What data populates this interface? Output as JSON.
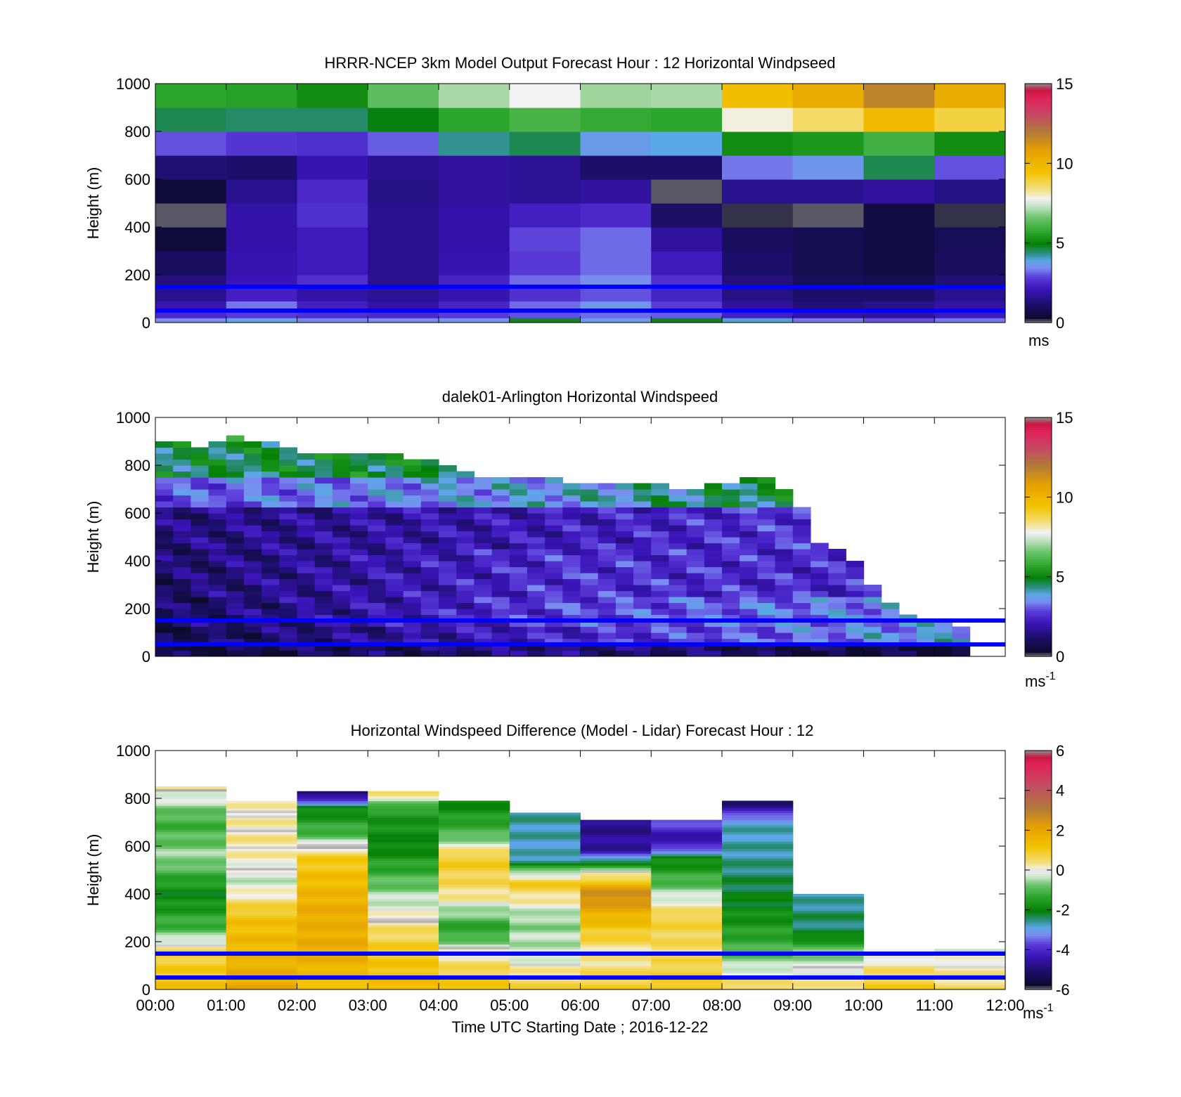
{
  "figure": {
    "xlabel": "Time UTC  Starting Date ; 2016-12-22",
    "x_tick_labels": [
      "00:00",
      "01:00",
      "02:00",
      "03:00",
      "04:00",
      "05:00",
      "06:00",
      "07:00",
      "08:00",
      "09:00",
      "10:00",
      "11:00",
      "12:00"
    ],
    "reference_line_color": "#0000ff",
    "reference_line_heights_m": [
      50,
      150
    ]
  },
  "chart_data": [
    {
      "id": "model",
      "type": "heatmap",
      "title": "HRRR-NCEP 3km Model Output   Forecast Hour : 12 Horizontal Windpseed",
      "ylabel": "Height (m)",
      "ylim": [
        0,
        1000
      ],
      "y_ticks": [
        "0",
        "200",
        "400",
        "600",
        "800",
        "1000"
      ],
      "colorbar": {
        "range": [
          0,
          15
        ],
        "ticks": [
          "0",
          "5",
          "10",
          "15"
        ],
        "unit_base": "ms",
        "unit_sup": ""
      },
      "x_hours": [
        0,
        1,
        2,
        3,
        4,
        5,
        6,
        7,
        8,
        9,
        10,
        11,
        12
      ],
      "y_bins_m": [
        [
          0,
          20
        ],
        [
          20,
          50
        ],
        [
          50,
          90
        ],
        [
          90,
          150
        ],
        [
          150,
          200
        ],
        [
          200,
          300
        ],
        [
          300,
          400
        ],
        [
          400,
          500
        ],
        [
          500,
          600
        ],
        [
          600,
          700
        ],
        [
          700,
          800
        ],
        [
          800,
          900
        ],
        [
          900,
          1000
        ]
      ],
      "values": [
        [
          3.5,
          3.8,
          3.4,
          3.5,
          3.6,
          4.8,
          3.7,
          4.8,
          4.0,
          3.3,
          3.0,
          3.3
        ],
        [
          2.5,
          2.8,
          2.6,
          2.5,
          2.8,
          3.0,
          3.2,
          3.1,
          2.3,
          1.9,
          1.8,
          2.2
        ],
        [
          2.0,
          3.3,
          2.3,
          1.9,
          2.4,
          3.2,
          3.6,
          2.8,
          1.8,
          1.4,
          1.6,
          1.9
        ],
        [
          1.6,
          2.3,
          1.9,
          1.7,
          2.0,
          2.6,
          3.0,
          2.4,
          1.5,
          1.2,
          1.2,
          1.6
        ],
        [
          1.4,
          2.1,
          2.6,
          1.6,
          2.4,
          3.2,
          3.5,
          2.6,
          1.4,
          0.9,
          0.8,
          1.3
        ],
        [
          1.0,
          2.0,
          2.2,
          1.6,
          2.0,
          2.8,
          3.2,
          2.2,
          1.2,
          0.8,
          0.6,
          1.0
        ],
        [
          0.5,
          1.9,
          2.2,
          1.6,
          1.9,
          2.9,
          3.2,
          1.8,
          1.0,
          0.8,
          0.6,
          0.9
        ],
        [
          0.1,
          1.9,
          2.6,
          1.6,
          1.9,
          2.3,
          2.5,
          1.1,
          0.2,
          0.1,
          0.6,
          0.2
        ],
        [
          0.5,
          1.6,
          2.5,
          1.5,
          1.8,
          1.7,
          1.8,
          0.1,
          1.6,
          1.6,
          1.8,
          1.5
        ],
        [
          1.3,
          1.2,
          2.0,
          1.6,
          1.8,
          1.7,
          1.2,
          1.2,
          3.3,
          3.6,
          4.6,
          3.0
        ],
        [
          3.0,
          2.7,
          2.6,
          3.1,
          4.3,
          4.6,
          3.7,
          3.9,
          5.2,
          5.4,
          6.0,
          5.2
        ],
        [
          4.6,
          4.5,
          4.5,
          4.9,
          5.7,
          6.1,
          5.8,
          5.7,
          7.9,
          8.6,
          9.8,
          8.9
        ],
        [
          5.7,
          5.6,
          5.2,
          6.4,
          7.1,
          7.8,
          7.0,
          7.1,
          9.6,
          10.4,
          11.7,
          10.4
        ]
      ]
    },
    {
      "id": "lidar",
      "type": "heatmap",
      "title": "dalek01-Arlington  Horizontal Windspeed",
      "ylabel": "Height (m)",
      "ylim": [
        0,
        1000
      ],
      "y_ticks": [
        "0",
        "200",
        "400",
        "600",
        "800",
        "1000"
      ],
      "colorbar": {
        "range": [
          0,
          15
        ],
        "ticks": [
          "0",
          "5",
          "10",
          "15"
        ],
        "unit_base": "ms",
        "unit_sup": "-1"
      },
      "profile_interval_min": 15,
      "column_top_m": [
        900,
        900,
        880,
        900,
        920,
        900,
        900,
        880,
        860,
        860,
        860,
        860,
        860,
        840,
        830,
        830,
        800,
        780,
        760,
        760,
        740,
        740,
        740,
        730,
        720,
        720,
        720,
        720,
        720,
        700,
        700,
        720,
        720,
        740,
        740,
        700,
        620,
        480,
        440,
        400,
        300,
        230,
        180,
        160,
        140,
        120
      ],
      "layers": [
        {
          "range": [
            0,
            40
          ],
          "speed": [
            0.5,
            1.5,
            0.3
          ]
        },
        {
          "range": [
            40,
            120
          ],
          "speed": [
            0.8,
            2.4,
            3.8
          ]
        },
        {
          "range": [
            120,
            250
          ],
          "speed": [
            1.0,
            2.8,
            3.6
          ]
        },
        {
          "range": [
            250,
            450
          ],
          "speed": [
            1.2,
            2.6,
            2.4
          ]
        },
        {
          "range": [
            450,
            620
          ],
          "speed": [
            1.4,
            2.2,
            3.0
          ]
        },
        {
          "range": [
            620,
            750
          ],
          "speed": [
            3.0,
            3.8,
            5.5
          ]
        },
        {
          "range": [
            750,
            900
          ],
          "speed": [
            4.6,
            5.0,
            5.8
          ]
        },
        {
          "range": [
            900,
            1000
          ],
          "speed": [
            5.5,
            7.0,
            6.8
          ]
        }
      ]
    },
    {
      "id": "difference",
      "type": "heatmap",
      "title": "Horizontal Windspeed Difference (Model - Lidar) Forecast Hour : 12",
      "ylabel": "Height (m)",
      "ylim": [
        0,
        1000
      ],
      "y_ticks": [
        "0",
        "200",
        "400",
        "600",
        "800",
        "1000"
      ],
      "colorbar": {
        "range": [
          -6,
          6
        ],
        "ticks": [
          "-6",
          "-4",
          "-2",
          "0",
          "2",
          "4",
          "6"
        ],
        "unit_base": "ms",
        "unit_sup": "-1"
      },
      "x_hours": [
        0,
        1,
        2,
        3,
        4,
        5,
        6,
        7,
        8,
        9,
        10,
        11,
        12
      ],
      "column_tops_m": [
        850,
        790,
        830,
        830,
        790,
        740,
        710,
        710,
        790,
        400,
        170,
        170
      ],
      "column_profiles": [
        [
          [
            0,
            1.2
          ],
          [
            150,
            0.8
          ],
          [
            250,
            -1.0
          ],
          [
            400,
            -2.0
          ],
          [
            550,
            -0.5
          ],
          [
            700,
            -1.2
          ],
          [
            850,
            0.2
          ]
        ],
        [
          [
            0,
            2.0
          ],
          [
            150,
            1.6
          ],
          [
            300,
            1.2
          ],
          [
            450,
            -0.3
          ],
          [
            600,
            0.3
          ],
          [
            790,
            0.1
          ]
        ],
        [
          [
            0,
            1.3
          ],
          [
            150,
            1.8
          ],
          [
            350,
            1.8
          ],
          [
            550,
            1.0
          ],
          [
            650,
            -1.0
          ],
          [
            760,
            -2.0
          ],
          [
            830,
            -5.5
          ]
        ],
        [
          [
            0,
            1.5
          ],
          [
            200,
            0.8
          ],
          [
            400,
            -0.5
          ],
          [
            600,
            -2.0
          ],
          [
            750,
            -1.5
          ],
          [
            830,
            0.6
          ]
        ],
        [
          [
            0,
            1.2
          ],
          [
            150,
            0.2
          ],
          [
            250,
            -1.5
          ],
          [
            400,
            0.4
          ],
          [
            550,
            1.0
          ],
          [
            650,
            -1.0
          ],
          [
            790,
            -2.0
          ]
        ],
        [
          [
            0,
            0.8
          ],
          [
            150,
            -0.3
          ],
          [
            300,
            -0.6
          ],
          [
            450,
            1.0
          ],
          [
            550,
            -2.8
          ],
          [
            740,
            -2.6
          ]
        ],
        [
          [
            0,
            1.0
          ],
          [
            150,
            0.2
          ],
          [
            300,
            1.5
          ],
          [
            400,
            2.8
          ],
          [
            500,
            -0.4
          ],
          [
            580,
            -4.5
          ],
          [
            710,
            -4.8
          ]
        ],
        [
          [
            0,
            1.2
          ],
          [
            150,
            0.5
          ],
          [
            300,
            0.8
          ],
          [
            450,
            -1.0
          ],
          [
            550,
            -2.0
          ],
          [
            620,
            -4.6
          ],
          [
            710,
            -3.5
          ]
        ],
        [
          [
            0,
            0.8
          ],
          [
            150,
            -1.0
          ],
          [
            350,
            -2.0
          ],
          [
            550,
            -2.6
          ],
          [
            700,
            -2.8
          ],
          [
            780,
            -5.0
          ]
        ],
        [
          [
            0,
            0.4
          ],
          [
            150,
            -0.6
          ],
          [
            250,
            -2.4
          ],
          [
            320,
            -2.4
          ],
          [
            400,
            -2.8
          ]
        ],
        [
          [
            0,
            1.0
          ],
          [
            170,
            -0.2
          ]
        ],
        [
          [
            0,
            0.6
          ],
          [
            170,
            -0.2
          ]
        ]
      ]
    }
  ]
}
